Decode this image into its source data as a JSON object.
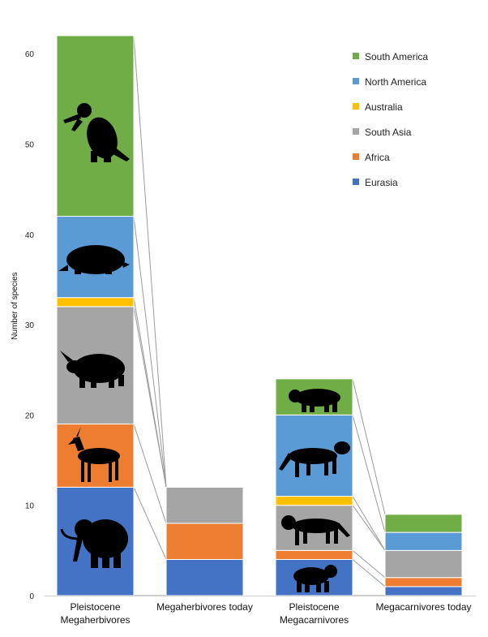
{
  "chart_data": {
    "type": "bar",
    "stacked": true,
    "ylabel": "Number of species",
    "ylim": [
      0,
      62
    ],
    "yticks": [
      0,
      10,
      20,
      30,
      40,
      50,
      60
    ],
    "categories": [
      [
        "Pleistocene",
        "Megaherbivores"
      ],
      [
        "Megaherbivores today"
      ],
      [
        "Pleistocene",
        "Megacarnivores"
      ],
      [
        "Megacarnivores today"
      ]
    ],
    "series": [
      {
        "name": "Eurasia",
        "color": "#4472C4",
        "values": [
          12,
          4,
          4,
          1
        ]
      },
      {
        "name": "Africa",
        "color": "#ED7D31",
        "values": [
          7,
          4,
          1,
          1
        ]
      },
      {
        "name": "South Asia",
        "color": "#A5A5A5",
        "values": [
          13,
          4,
          5,
          3
        ]
      },
      {
        "name": "Australia",
        "color": "#FFC000",
        "values": [
          1,
          0,
          1,
          0
        ]
      },
      {
        "name": "North America",
        "color": "#5B9BD5",
        "values": [
          9,
          0,
          9,
          2
        ]
      },
      {
        "name": "South America",
        "color": "#70AD47",
        "values": [
          20,
          0,
          4,
          2
        ]
      }
    ],
    "legend_position": "top-right",
    "legend_order": [
      "South America",
      "North America",
      "Australia",
      "South Asia",
      "Africa",
      "Eurasia"
    ],
    "connector_lines": true,
    "grid": false,
    "silhouettes": [
      "ground-sloth",
      "glyptodont",
      "woolly-rhino",
      "antelope",
      "mammoth",
      "bear",
      "sabertooth-cat",
      "lion",
      "short-faced-bear"
    ]
  }
}
